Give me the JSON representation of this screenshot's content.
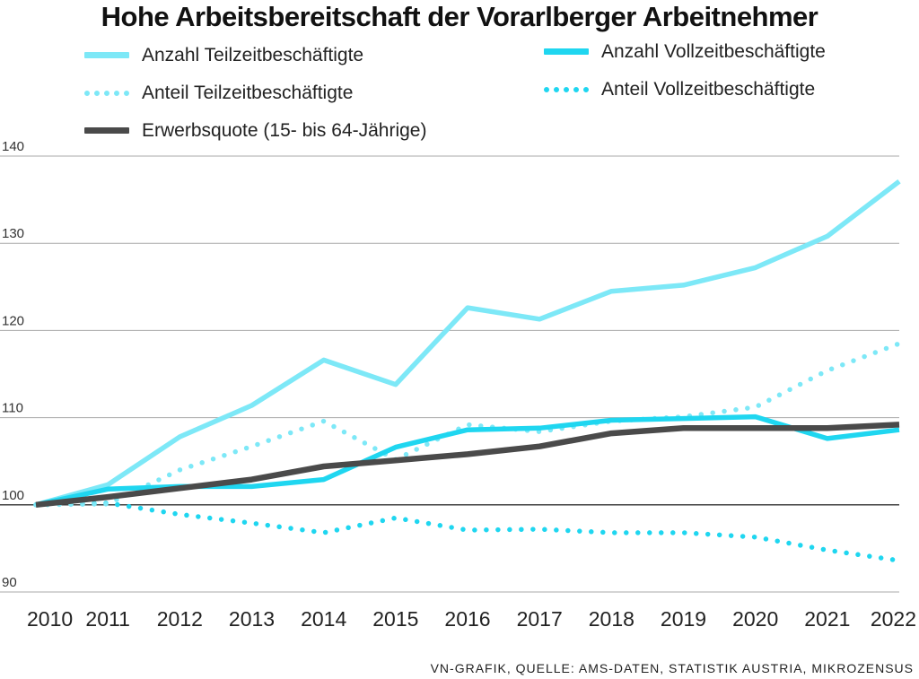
{
  "title": "Hohe Arbeitsbereitschaft der Vorarlberger Arbeitnehmer",
  "source": "VN-GRAFIK, QUELLE: AMS-DATEN, STATISTIK AUSTRIA, MIKROZENSUS",
  "colors": {
    "light_cyan": "#7de8f7",
    "cyan": "#1fd6f0",
    "dark_gray": "#4a4a4a",
    "grid": "#a9a9a9",
    "baseline": "#333333"
  },
  "legend": [
    {
      "label": "Anzahl Teilzeitbeschäftigte",
      "style": "solid",
      "color": "#7de8f7"
    },
    {
      "label": "Anteil Teilzeitbeschäftigte",
      "style": "dotted",
      "color": "#7de8f7"
    },
    {
      "label": "Erwerbsquote (15- bis 64-Jährige)",
      "style": "solid",
      "color": "#4a4a4a"
    },
    {
      "label": "Anzahl Vollzeitbeschäftigte",
      "style": "solid",
      "color": "#1fd6f0"
    },
    {
      "label": "Anteil Vollzeitbeschäftigte",
      "style": "dotted",
      "color": "#1fd6f0"
    }
  ],
  "chart_data": {
    "type": "line",
    "title": "Hohe Arbeitsbereitschaft der Vorarlberger Arbeitnehmer",
    "xlabel": "",
    "ylabel": "",
    "x": [
      "2010",
      "2011",
      "2012",
      "2013",
      "2014",
      "2015",
      "2016",
      "2017",
      "2018",
      "2019",
      "2020",
      "2021",
      "2022"
    ],
    "ylim": [
      90,
      140
    ],
    "yticks": [
      "90",
      "100",
      "110",
      "120",
      "130",
      "140"
    ],
    "grid": true,
    "series": [
      {
        "name": "Anzahl Teilzeitbeschäftigte",
        "style": "solid",
        "color": "#7de8f7",
        "values": [
          100,
          102.3,
          107.8,
          111.4,
          116.6,
          113.8,
          122.6,
          121.3,
          124.5,
          125.2,
          127.2,
          130.8,
          137.1
        ]
      },
      {
        "name": "Anteil Teilzeitbeschäftigte",
        "style": "dotted",
        "color": "#7de8f7",
        "values": [
          100,
          100.1,
          104.0,
          106.7,
          109.6,
          105.2,
          109.2,
          108.4,
          109.6,
          110.1,
          111.2,
          115.4,
          118.5
        ]
      },
      {
        "name": "Erwerbsquote (15- bis 64-Jährige)",
        "style": "solid",
        "color": "#4a4a4a",
        "values": [
          100,
          100.9,
          101.9,
          102.9,
          104.4,
          105.1,
          105.8,
          106.7,
          108.2,
          108.8,
          108.8,
          108.8,
          109.2
        ]
      },
      {
        "name": "Anzahl Vollzeitbeschäftigte",
        "style": "solid",
        "color": "#1fd6f0",
        "values": [
          100,
          101.8,
          102.1,
          102.1,
          102.9,
          106.6,
          108.6,
          108.8,
          109.7,
          109.9,
          110.1,
          107.6,
          108.6
        ]
      },
      {
        "name": "Anteil Vollzeitbeschäftigte",
        "style": "dotted",
        "color": "#1fd6f0",
        "values": [
          100,
          100.2,
          98.9,
          97.9,
          96.8,
          98.5,
          97.1,
          97.2,
          96.8,
          96.8,
          96.3,
          94.8,
          93.6
        ]
      }
    ]
  }
}
